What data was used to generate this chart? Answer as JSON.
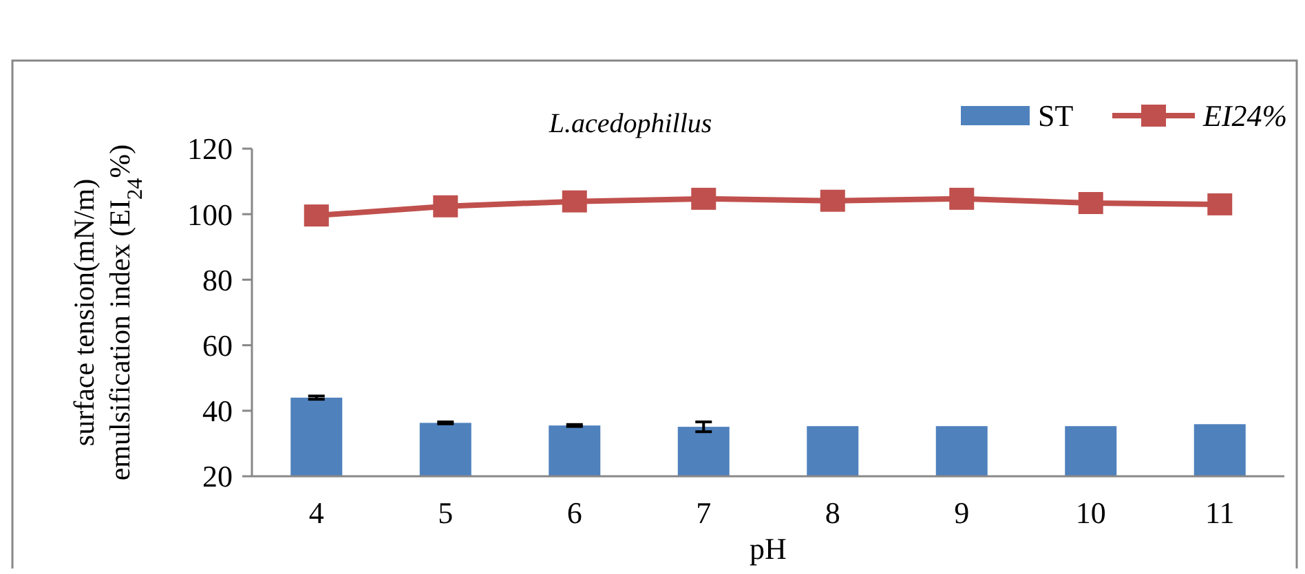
{
  "chart_data": {
    "type": "bar",
    "title": "L.acedophillus",
    "xlabel": "pH",
    "ylabel": "surface tension(mN/m)\nemulsification index (EI$_{24}$%)",
    "categories": [
      "4",
      "5",
      "6",
      "7",
      "8",
      "9",
      "10",
      "11"
    ],
    "series": [
      {
        "name": "ST",
        "color": "#4f81bd",
        "values": [
          44,
          36.3,
          35.5,
          35.1,
          35.3,
          35.3,
          35.3,
          35.9
        ],
        "errors": [
          0.5,
          0.3,
          0.3,
          1.5,
          null,
          null,
          null,
          null
        ]
      },
      {
        "name": "EI24%",
        "type": "line",
        "color": "#c0504d",
        "marker": "square",
        "values": [
          99.6,
          102.4,
          103.9,
          104.7,
          104.1,
          104.7,
          103.4,
          103
        ]
      }
    ],
    "ylim": [
      20,
      120
    ],
    "yticks": [
      20,
      40,
      60,
      80,
      100,
      120
    ],
    "grid": false,
    "legend": "top right"
  }
}
